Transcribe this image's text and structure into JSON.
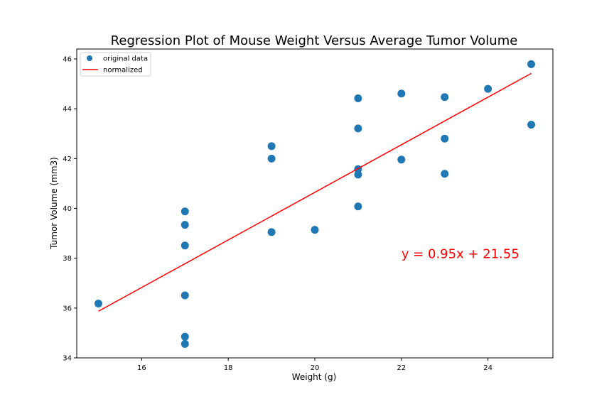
{
  "chart_data": {
    "type": "scatter",
    "title": "Regression Plot of Mouse Weight Versus Average Tumor Volume",
    "xlabel": "Weight (g)",
    "ylabel": "Tumor Volume (mm3)",
    "xlim": [
      14.5,
      25.5
    ],
    "ylim": [
      34,
      46.4
    ],
    "xticks": [
      16,
      18,
      20,
      22,
      24
    ],
    "yticks": [
      34,
      36,
      38,
      40,
      42,
      44,
      46
    ],
    "grid": false,
    "legend_position": "top-left",
    "series": [
      {
        "name": "original data",
        "kind": "scatter",
        "color": "#1f77b4",
        "points": [
          [
            15,
            36.18
          ],
          [
            17,
            39.88
          ],
          [
            17,
            39.34
          ],
          [
            17,
            38.51
          ],
          [
            17,
            36.51
          ],
          [
            17,
            34.85
          ],
          [
            17,
            34.56
          ],
          [
            19,
            42.5
          ],
          [
            19,
            42.0
          ],
          [
            19,
            39.05
          ],
          [
            20,
            39.14
          ],
          [
            21,
            44.42
          ],
          [
            21,
            43.21
          ],
          [
            21,
            41.58
          ],
          [
            21,
            41.36
          ],
          [
            21,
            40.08
          ],
          [
            22,
            44.61
          ],
          [
            22,
            41.96
          ],
          [
            23,
            44.47
          ],
          [
            23,
            42.8
          ],
          [
            23,
            41.39
          ],
          [
            24,
            44.8
          ],
          [
            25,
            45.79
          ],
          [
            25,
            43.36
          ]
        ]
      },
      {
        "name": "normalized",
        "kind": "line",
        "color": "#ff0000",
        "x": [
          15,
          25
        ],
        "y": [
          35.87,
          45.42
        ]
      }
    ],
    "annotations": [
      {
        "text": "y = 0.95x + 21.55",
        "x": 22,
        "y": 38,
        "color": "#ff0000"
      }
    ]
  }
}
